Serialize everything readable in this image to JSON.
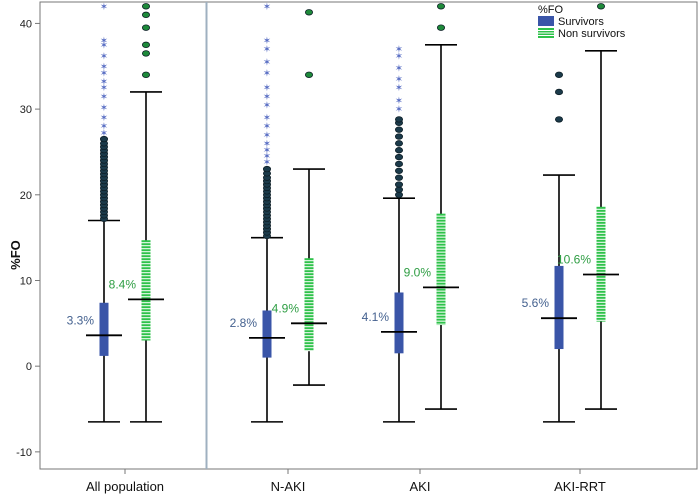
{
  "colors": {
    "survivors": "#3a55a8",
    "non_survivors": "#2ec24a",
    "survivors_label": "#44618f",
    "non_survivors_label": "#2f9e44",
    "outlier_fill": "#1b3a4a",
    "outlier_green": "#1e8a3a",
    "divider": "#9fb0c0",
    "axis": "#777777"
  },
  "chart_data": {
    "type": "boxplot",
    "ylabel": "%FO",
    "xlabel": "",
    "ylim": [
      -12,
      42.5
    ],
    "yticks": [
      -10,
      0,
      10,
      20,
      30,
      40
    ],
    "yticks_labels": [
      "-10",
      "0",
      "10",
      "20",
      "30",
      "40"
    ],
    "legend": {
      "title": "%FO",
      "position": "top-right",
      "entries": [
        "Survivors",
        "Non survivors"
      ]
    },
    "categories": [
      "All population",
      "N-AKI",
      "AKI",
      "AKI-RRT"
    ],
    "groups": [
      {
        "category": "All population",
        "boxes": [
          {
            "series": "Survivors",
            "min": -6.5,
            "q1": 1.2,
            "median": 3.6,
            "q3": 7.4,
            "max": 17.0,
            "label": "3.3%",
            "outliers_circle": [
              17.2,
              17.6,
              18.0,
              18.4,
              18.8,
              19.2,
              19.6,
              20.0,
              20.4,
              20.8,
              21.2,
              21.6,
              22.0,
              22.4,
              22.8,
              23.2,
              23.6,
              24.0,
              24.4,
              24.8,
              25.2,
              25.6,
              26.0,
              26.5
            ],
            "outliers_star": [
              27.2,
              28.0,
              29.0,
              30.2,
              31.5,
              32.5,
              33.2,
              34.2,
              35.0,
              36.2,
              37.5,
              38.0,
              42.0
            ]
          },
          {
            "series": "Non survivors",
            "min": -6.5,
            "q1": 3.0,
            "median": 7.8,
            "q3": 14.7,
            "max": 32.0,
            "label": "8.4%",
            "outliers_circle": [
              34.0,
              36.5,
              37.5,
              39.5,
              41.0,
              42.0
            ],
            "outliers_star": []
          }
        ]
      },
      {
        "category": "N-AKI",
        "boxes": [
          {
            "series": "Survivors",
            "min": -6.5,
            "q1": 1.0,
            "median": 3.3,
            "q3": 6.5,
            "max": 15.0,
            "label": "2.8%",
            "outliers_circle": [
              15.2,
              15.6,
              16.0,
              16.4,
              16.8,
              17.2,
              17.6,
              18.0,
              18.4,
              18.8,
              19.2,
              19.6,
              20.0,
              20.4,
              20.8,
              21.2,
              21.6,
              22.0,
              22.5,
              23.0
            ],
            "outliers_star": [
              23.8,
              24.5,
              25.2,
              26.0,
              27.0,
              28.0,
              29.0,
              30.5,
              31.5,
              32.5,
              34.2,
              35.5,
              37.0,
              38.0,
              42.0
            ]
          },
          {
            "series": "Non survivors",
            "min": -2.2,
            "q1": 1.8,
            "median": 5.0,
            "q3": 12.6,
            "max": 23.0,
            "label": "4.9%",
            "outliers_circle": [
              34.0,
              41.3
            ],
            "outliers_star": []
          }
        ]
      },
      {
        "category": "AKI",
        "boxes": [
          {
            "series": "Survivors",
            "min": -6.5,
            "q1": 1.5,
            "median": 4.0,
            "q3": 8.6,
            "max": 19.6,
            "label": "4.1%",
            "outliers_circle": [
              20.0,
              20.6,
              21.2,
              22.0,
              22.8,
              23.6,
              24.4,
              25.2,
              26.0,
              26.8,
              27.6,
              28.4,
              28.8
            ],
            "outliers_star": [
              30.0,
              31.0,
              32.5,
              33.5,
              34.8,
              36.2,
              37.0
            ]
          },
          {
            "series": "Non survivors",
            "min": -5.0,
            "q1": 4.8,
            "median": 9.2,
            "q3": 17.8,
            "max": 37.5,
            "label": "9.0%",
            "outliers_circle": [
              39.5,
              42.0
            ],
            "outliers_star": []
          }
        ]
      },
      {
        "category": "AKI-RRT",
        "boxes": [
          {
            "series": "Survivors",
            "min": -6.5,
            "q1": 2.0,
            "median": 5.6,
            "q3": 11.7,
            "max": 22.3,
            "label": "5.6%",
            "outliers_circle": [
              28.8,
              32.0,
              34.0
            ],
            "outliers_star": []
          },
          {
            "series": "Non survivors",
            "min": -5.0,
            "q1": 5.2,
            "median": 10.7,
            "q3": 18.6,
            "max": 36.8,
            "label": "10.6%",
            "outliers_circle": [
              42.0
            ],
            "outliers_star": []
          }
        ]
      }
    ]
  }
}
